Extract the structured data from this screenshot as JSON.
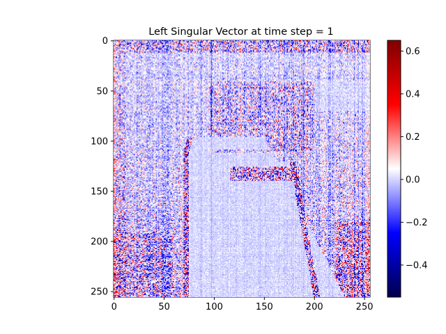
{
  "chart_data": {
    "type": "heatmap",
    "title": "Left Singular Vector at time step = 1",
    "xlabel": "",
    "ylabel": "",
    "xlim": [
      0,
      255
    ],
    "ylim": [
      255,
      0
    ],
    "x_ticks": [
      0,
      50,
      100,
      150,
      200,
      250
    ],
    "y_ticks": [
      0,
      50,
      100,
      150,
      200,
      250
    ],
    "x_tick_labels": [
      "0",
      "50",
      "100",
      "150",
      "200",
      "250"
    ],
    "y_tick_labels": [
      "0",
      "50",
      "100",
      "150",
      "200",
      "250"
    ],
    "grid": false,
    "colormap": "seismic",
    "colorbar": {
      "vmin": -0.55,
      "vmax": 0.65,
      "ticks": [
        -0.4,
        -0.2,
        0.0,
        0.2,
        0.4,
        0.6
      ],
      "tick_labels": [
        "−0.4",
        "−0.2",
        "0.0",
        "0.2",
        "0.4",
        "0.6"
      ]
    },
    "grid_size": [
      256,
      256
    ]
  }
}
